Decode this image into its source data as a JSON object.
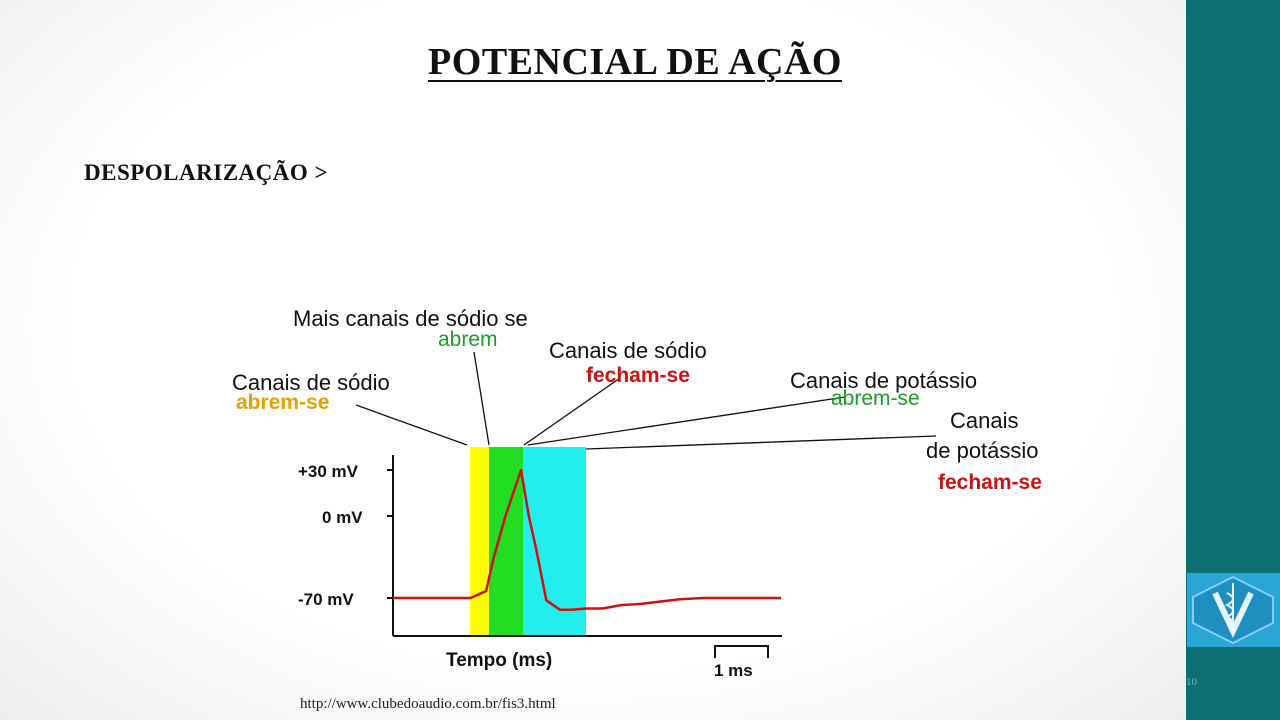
{
  "slide": {
    "title": "POTENCIAL DE AÇÃO",
    "subtitle": "DESPOLARIZAÇÃO >",
    "source_url": "http://www.clubedoaudio.com.br/fis3.html",
    "slide_number": "10"
  },
  "colors": {
    "sidebar": "#0b6f74",
    "logo_bg": "#2aa6d6",
    "yellow_band": "#ffff00",
    "green_band": "#22dd22",
    "cyan_band": "#22eeee",
    "trace": "#cc1111",
    "label_orange": "#e8a000",
    "label_green": "#1a9e2a",
    "label_red": "#cc1111"
  },
  "logo_icon": "caduceus-v-icon",
  "chart_data": {
    "type": "line",
    "title": "",
    "xlabel": "Tempo (ms)",
    "ylabel": "",
    "y_ticks": [
      "+30 mV",
      "0 mV",
      "-70 mV"
    ],
    "ylim": [
      -70,
      30
    ],
    "scale_bar": "1 ms",
    "series": [
      {
        "values_mV": [
          -70,
          -70,
          -70,
          -70,
          -64,
          -35,
          0,
          30,
          0,
          -30,
          -72,
          -80,
          -80,
          -79,
          -79,
          -76,
          -75,
          -73,
          -71,
          -70,
          -70,
          -70
        ],
        "x_ms": [
          0.0,
          1.0,
          1.6,
          2.0,
          2.4,
          2.6,
          2.9,
          3.3,
          3.5,
          3.7,
          3.95,
          4.3,
          4.6,
          5.0,
          5.4,
          5.9,
          6.4,
          6.9,
          7.4,
          8.0,
          8.6,
          10.0
        ]
      }
    ],
    "bands": [
      {
        "name": "Canais de sódio abrem-se",
        "color": "yellow"
      },
      {
        "name": "Mais canais de sódio se abrem",
        "color": "green"
      },
      {
        "name": "Canais de potássio abrem-se",
        "color": "cyan"
      }
    ],
    "annotations": [
      {
        "line1": "Mais canais de sódio se",
        "line2": "abrem",
        "line2_color": "green"
      },
      {
        "line1": "Canais de sódio",
        "line2": "fecham-se",
        "line2_color": "red"
      },
      {
        "line1": "Canais de sódio",
        "line2": "abrem-se",
        "line2_color": "orange"
      },
      {
        "line1": "Canais de potássio",
        "line2": "abrem-se",
        "line2_color": "green"
      },
      {
        "line1": "Canais",
        "line2": "de potássio",
        "line3": "fecham-se",
        "line3_color": "red"
      }
    ]
  }
}
